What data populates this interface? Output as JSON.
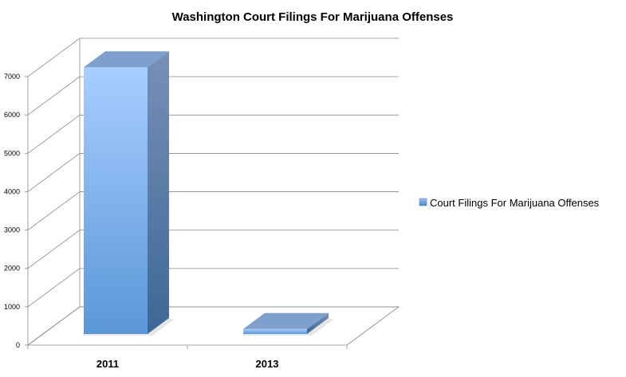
{
  "chart_data": {
    "type": "bar",
    "title": "Washington Court Filings For Marijuana Offenses",
    "categories": [
      "2011",
      "2013"
    ],
    "series": [
      {
        "name": "Court Filings For Marijuana Offenses",
        "values": [
          6950,
          130
        ]
      }
    ],
    "yticks": [
      "0",
      "1000",
      "2000",
      "3000",
      "4000",
      "5000",
      "6000",
      "7000"
    ],
    "ylim": [
      0,
      7000
    ],
    "grid": true,
    "legend_position": "right",
    "colors": {
      "bar_front": "#6fa2e4",
      "bar_side": "#4a72a8",
      "bar_top": "#7f9fcc",
      "grid": "#888888"
    }
  }
}
